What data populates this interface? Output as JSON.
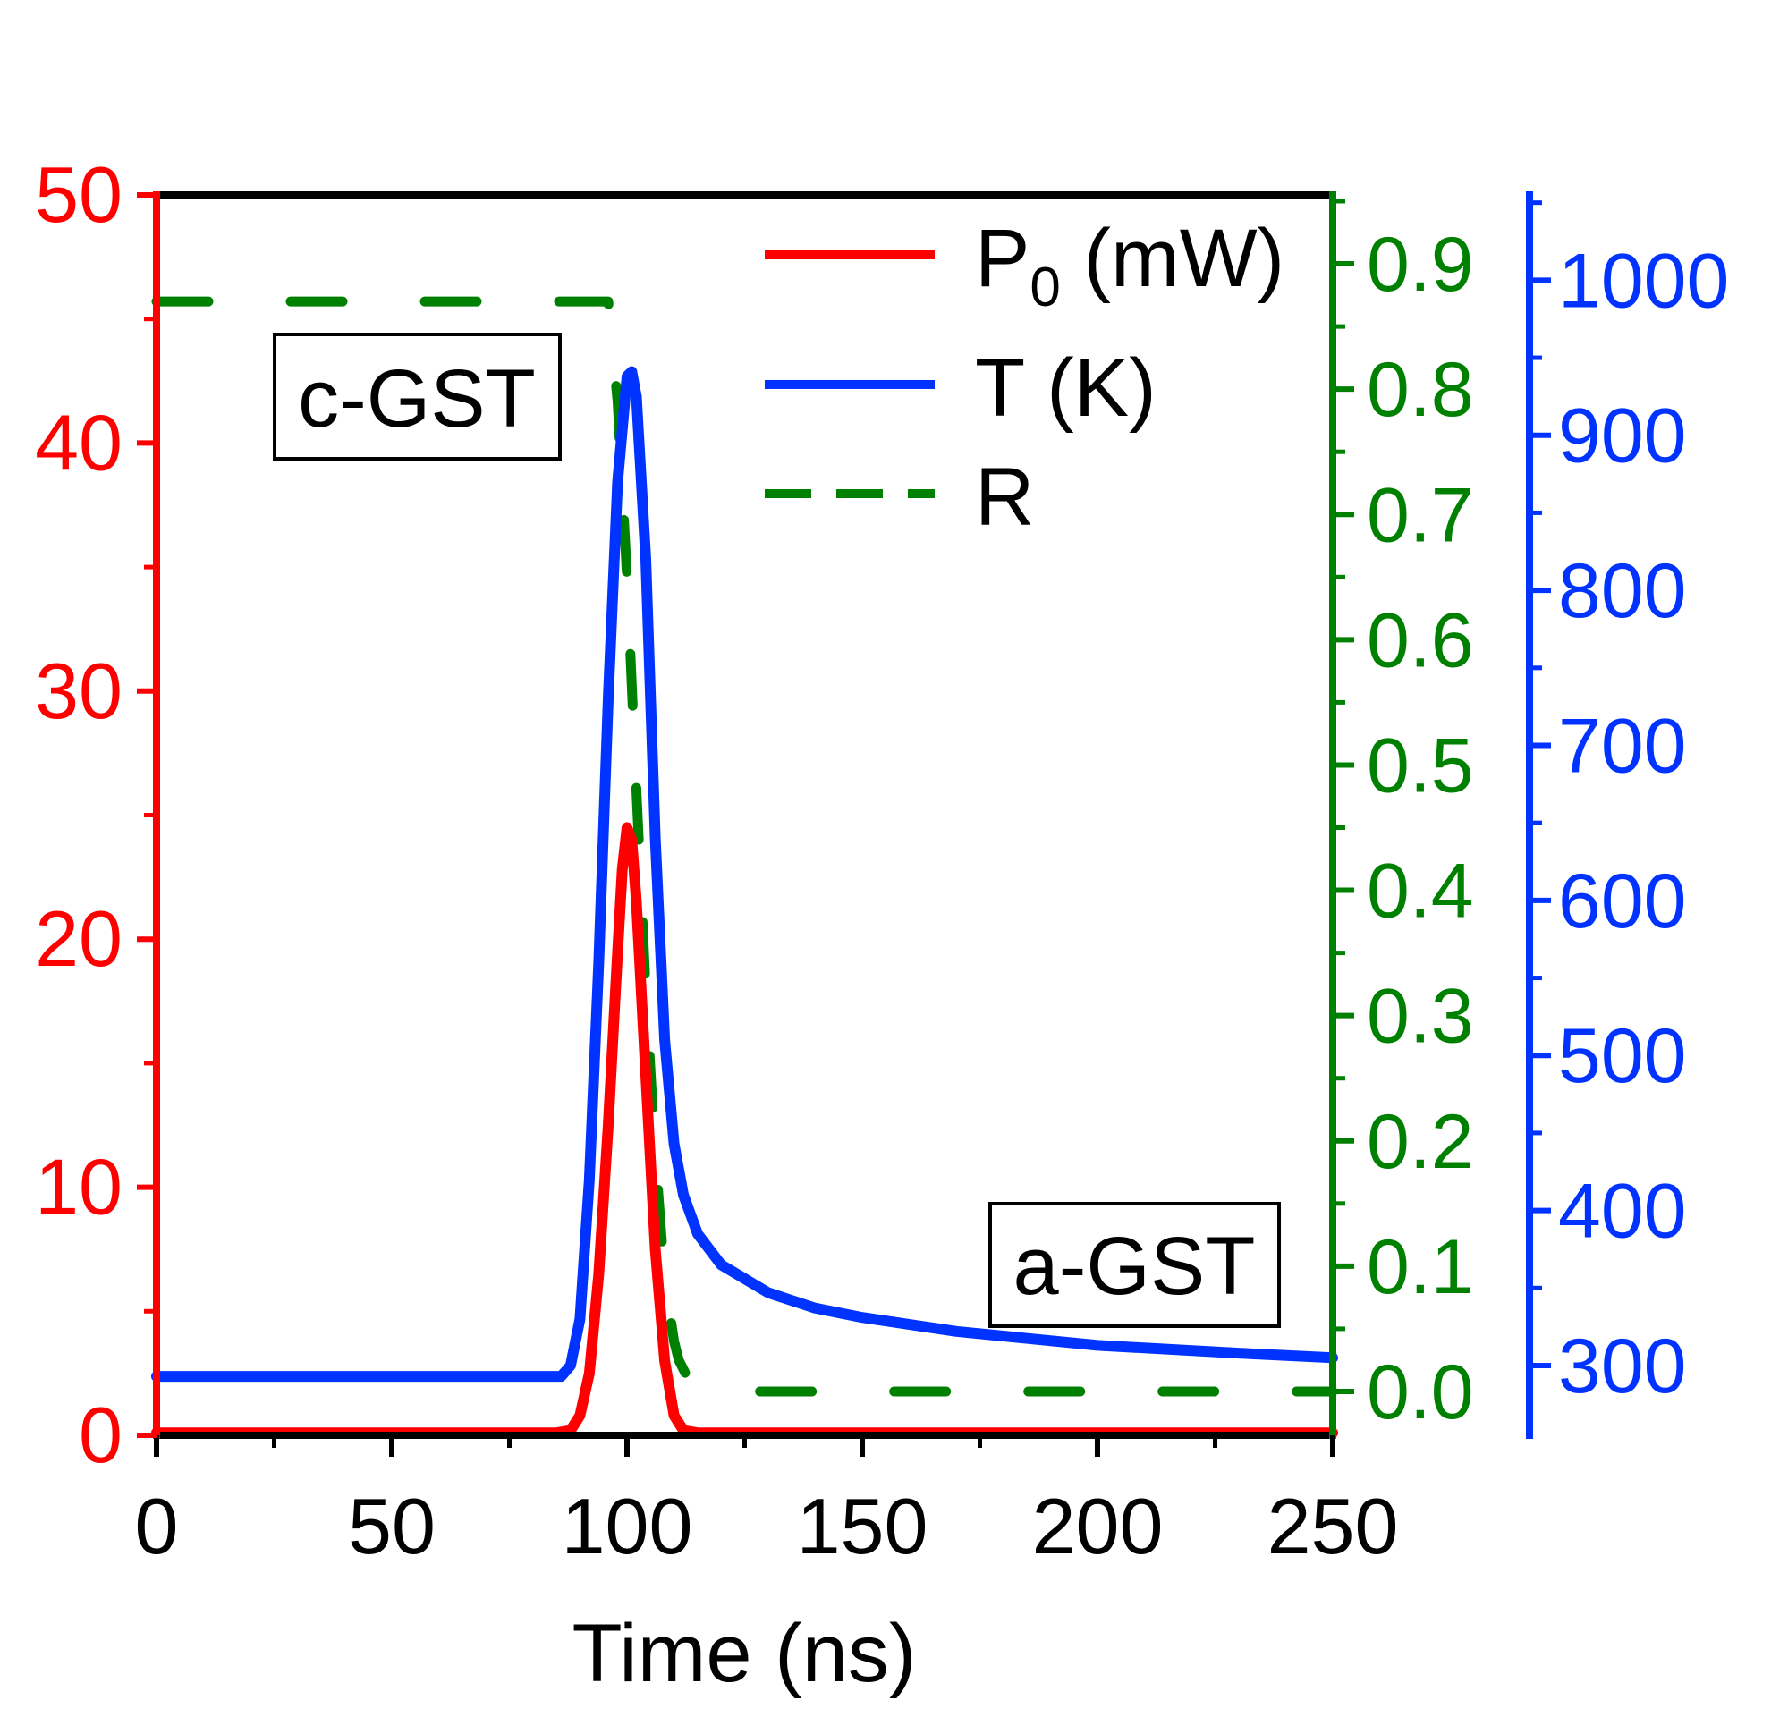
{
  "chart_data": {
    "type": "line",
    "title": "",
    "xlabel": "Time (ns)",
    "xlim": [
      0,
      250
    ],
    "xticks": [
      0,
      50,
      100,
      150,
      200,
      250
    ],
    "x_tick_labels": [
      "0",
      "50",
      "100",
      "150",
      "200",
      "250"
    ],
    "axes": {
      "power": {
        "side": "left",
        "ylim": [
          0,
          50
        ],
        "ticks": [
          0,
          10,
          20,
          30,
          40,
          50
        ],
        "tick_labels": [
          "0",
          "10",
          "20",
          "30",
          "40",
          "50"
        ],
        "color": "#ff0000"
      },
      "reflectance": {
        "side": "right",
        "ylim": [
          -0.035,
          0.955
        ],
        "ticks": [
          0.0,
          0.1,
          0.2,
          0.3,
          0.4,
          0.5,
          0.6,
          0.7,
          0.8,
          0.9
        ],
        "tick_labels": [
          "0.0",
          "0.1",
          "0.2",
          "0.3",
          "0.4",
          "0.5",
          "0.6",
          "0.7",
          "0.8",
          "0.9"
        ],
        "color": "#008000"
      },
      "temperature": {
        "side": "right-outer",
        "ylim": [
          255,
          1055
        ],
        "ticks": [
          300,
          400,
          500,
          600,
          700,
          800,
          900,
          1000
        ],
        "tick_labels": [
          "300",
          "400",
          "500",
          "600",
          "700",
          "800",
          "900",
          "1000"
        ],
        "color": "#0033ff"
      }
    },
    "series": [
      {
        "name": "P0 (mW)",
        "axis": "power",
        "color": "#ff0000",
        "style": "solid",
        "x": [
          0,
          85,
          88,
          90,
          92,
          94,
          96,
          98,
          99,
          100,
          101,
          102,
          104,
          106,
          108,
          110,
          112,
          115,
          250
        ],
        "y": [
          0.1,
          0.1,
          0.2,
          0.8,
          2.5,
          6.5,
          12.5,
          19.5,
          22.8,
          24.5,
          24.0,
          21.5,
          14.5,
          7.5,
          3.0,
          0.8,
          0.2,
          0.1,
          0.1
        ]
      },
      {
        "name": "T (K)",
        "axis": "temperature",
        "color": "#0033ff",
        "style": "solid",
        "x": [
          0,
          86,
          88,
          90,
          92,
          94,
          96,
          98,
          100,
          101,
          102,
          104,
          106,
          108,
          110,
          112,
          115,
          120,
          130,
          140,
          150,
          170,
          200,
          230,
          250
        ],
        "y": [
          293,
          293,
          300,
          330,
          420,
          560,
          730,
          870,
          938,
          941,
          925,
          820,
          640,
          510,
          443,
          410,
          385,
          365,
          347,
          337,
          331,
          322,
          313,
          308,
          305
        ]
      },
      {
        "name": "R",
        "axis": "reflectance",
        "color": "#008000",
        "style": "dashed",
        "x": [
          0,
          96,
          98,
          100,
          102,
          104,
          106,
          108,
          110,
          111,
          113,
          116,
          118,
          120,
          250
        ],
        "y": [
          0.87,
          0.87,
          0.79,
          0.65,
          0.48,
          0.32,
          0.19,
          0.09,
          0.04,
          0.025,
          0.01,
          0.002,
          0.0,
          0.0,
          0.0
        ]
      }
    ],
    "legend": {
      "placement": "top-right",
      "entries": [
        {
          "prefix": "P",
          "subscript": "0",
          "suffix": " (mW)",
          "series": 0
        },
        {
          "prefix": "T (K)",
          "subscript": "",
          "suffix": "",
          "series": 1
        },
        {
          "prefix": "R",
          "subscript": "",
          "suffix": "",
          "series": 2
        }
      ]
    },
    "annotations": [
      {
        "text": "c-GST",
        "placement": "upper-left"
      },
      {
        "text": "a-GST",
        "placement": "lower-right"
      }
    ]
  }
}
